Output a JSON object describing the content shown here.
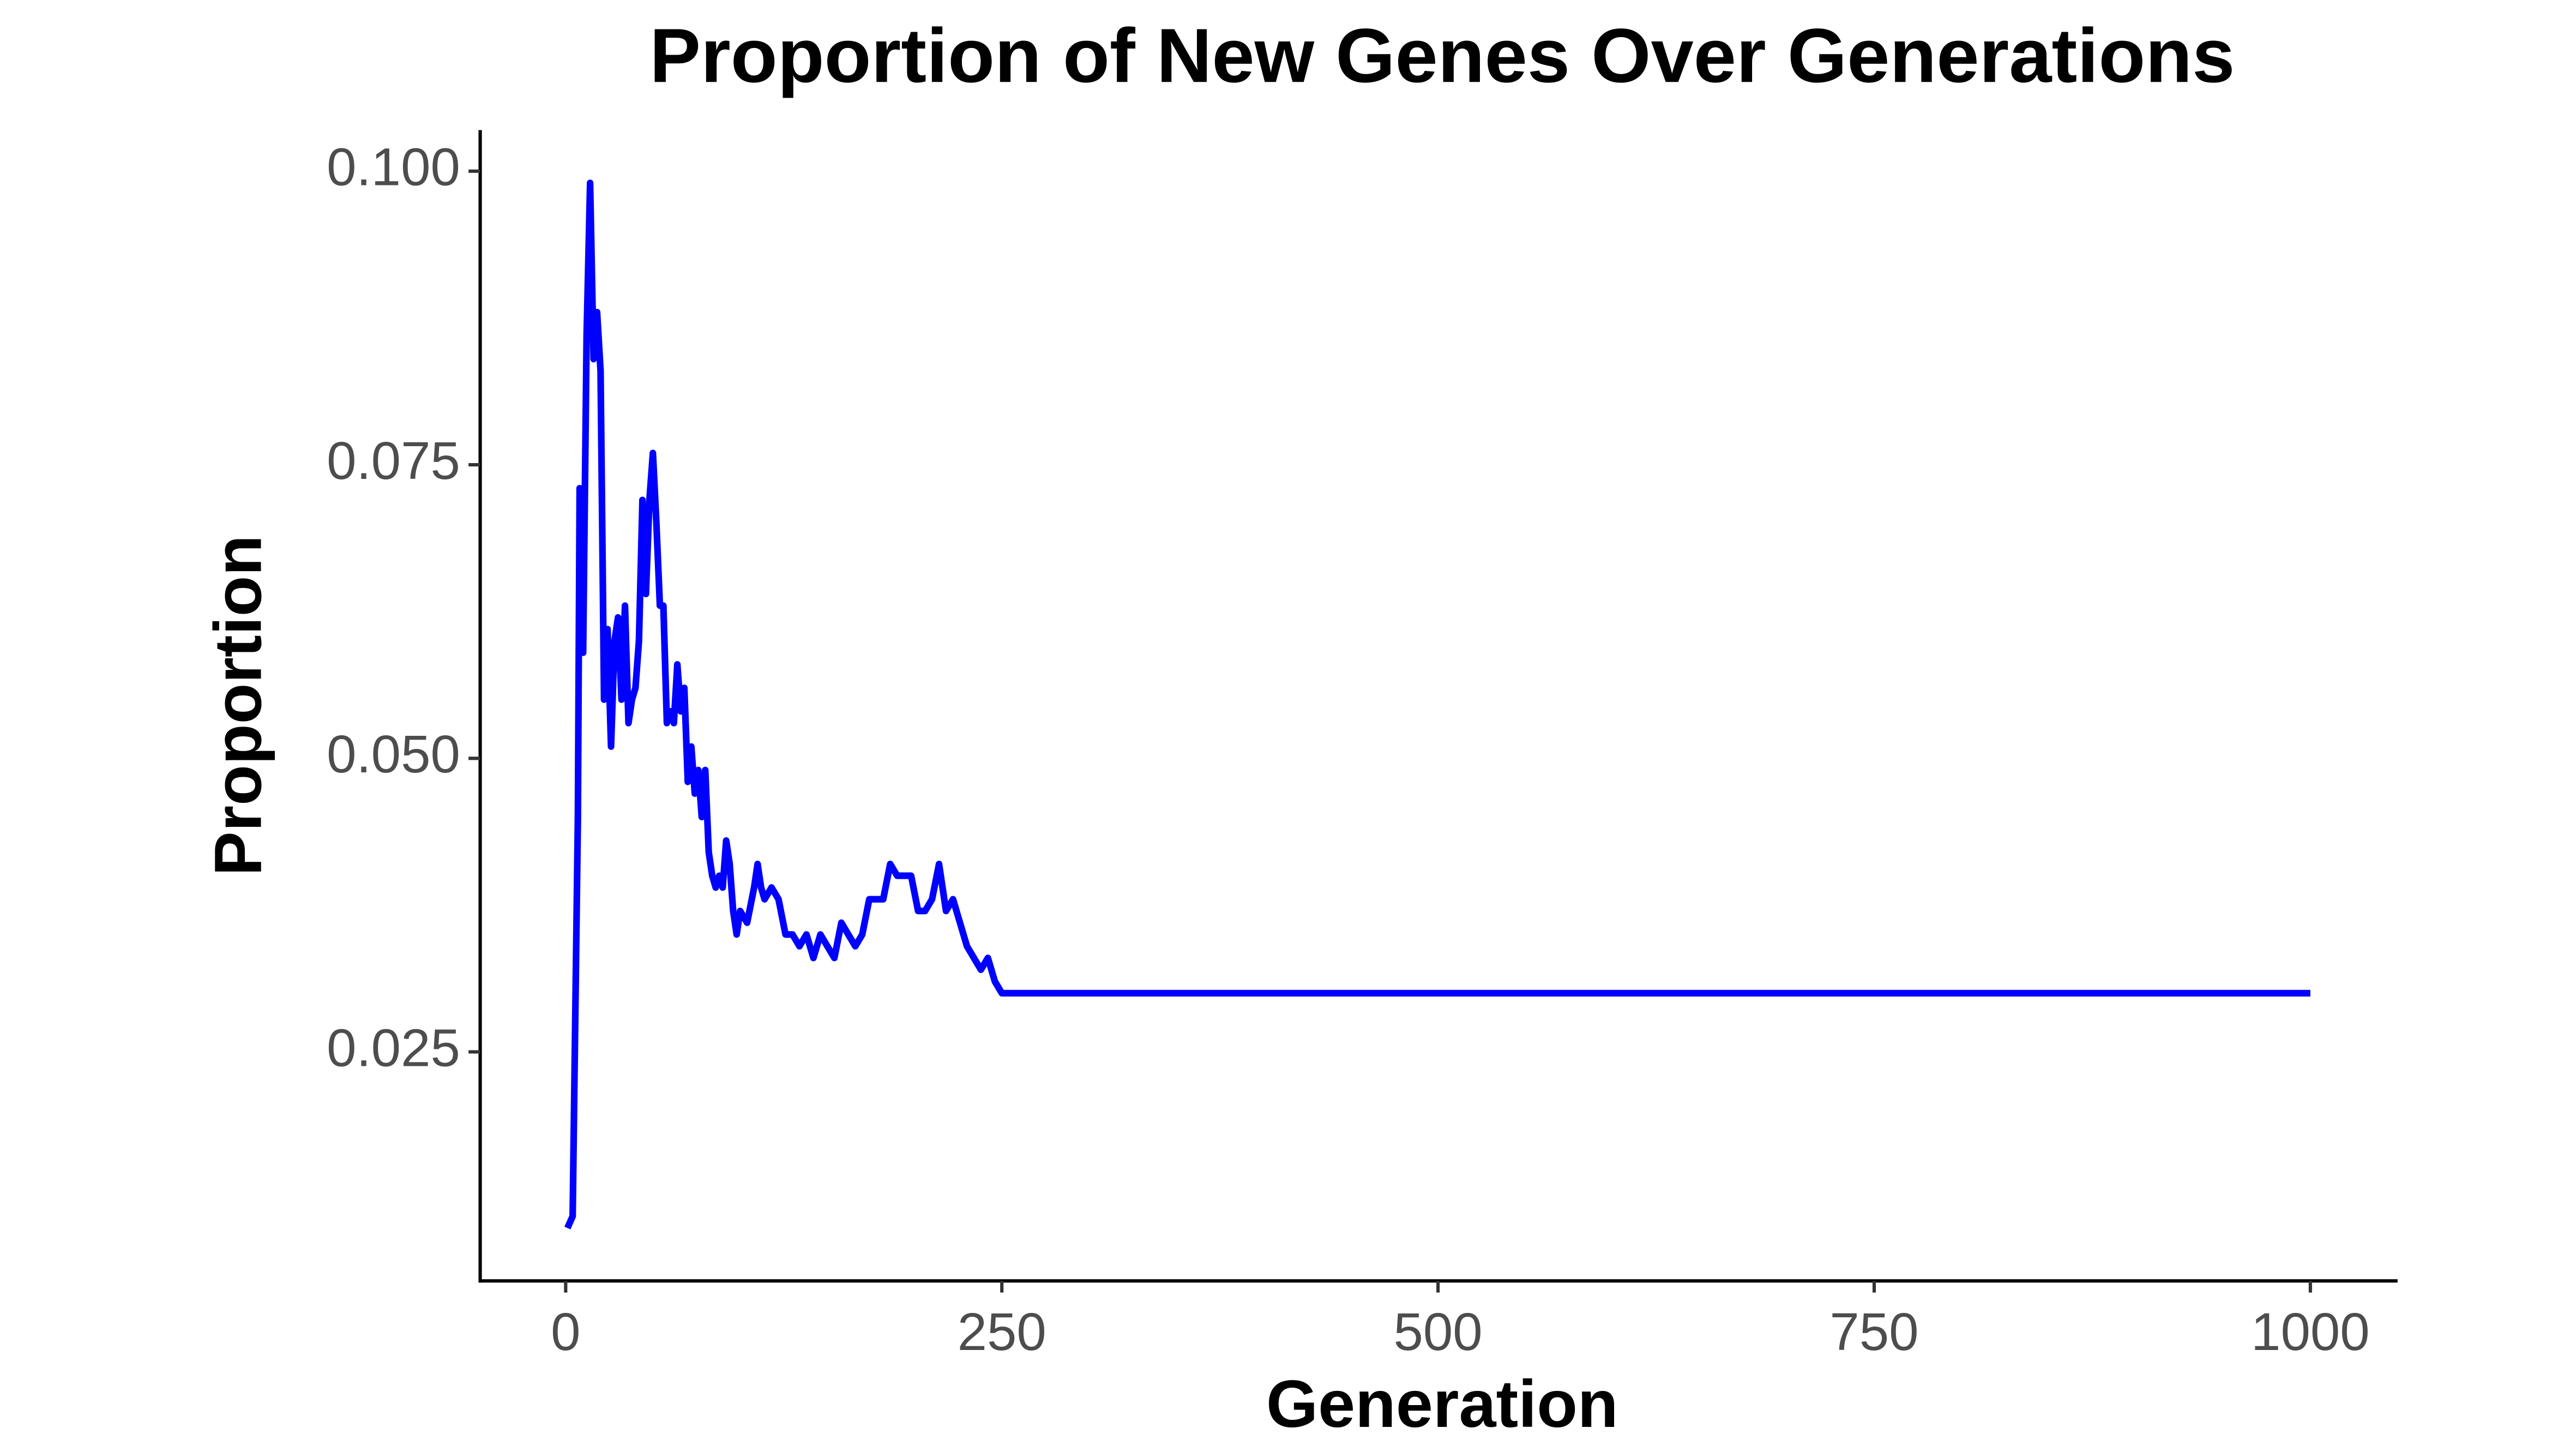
{
  "chart_data": {
    "type": "line",
    "title": "Proportion of New Genes Over Generations",
    "x_label": "Generation",
    "y_label": "Proportion",
    "xlim": [
      -49,
      1050
    ],
    "ylim": [
      0.0055,
      0.1035
    ],
    "xticks": [
      0,
      250,
      500,
      750,
      1000
    ],
    "yticks": [
      {
        "value": 0.025,
        "label": "0.025"
      },
      {
        "value": 0.05,
        "label": "0.050"
      },
      {
        "value": 0.075,
        "label": "0.075"
      },
      {
        "value": 0.1,
        "label": "0.100"
      }
    ],
    "grid": false,
    "series": [
      {
        "name": "Proportion",
        "color": "#0000ff",
        "x": [
          1,
          4,
          7,
          8,
          10,
          12,
          14,
          16,
          18,
          20,
          22,
          24,
          26,
          28,
          30,
          32,
          34,
          36,
          38,
          40,
          42,
          44,
          46,
          48,
          50,
          52,
          54,
          56,
          58,
          60,
          62,
          64,
          66,
          68,
          70,
          72,
          74,
          76,
          78,
          80,
          82,
          84,
          86,
          88,
          90,
          92,
          94,
          96,
          98,
          100,
          104,
          108,
          110,
          112,
          114,
          118,
          122,
          126,
          130,
          134,
          138,
          142,
          146,
          150,
          154,
          158,
          162,
          166,
          170,
          174,
          178,
          182,
          186,
          190,
          194,
          198,
          202,
          206,
          210,
          214,
          218,
          222,
          226,
          230,
          234,
          238,
          242,
          246,
          250,
          1000
        ],
        "values": [
          0.01,
          0.011,
          0.045,
          0.073,
          0.059,
          0.086,
          0.099,
          0.084,
          0.088,
          0.083,
          0.055,
          0.061,
          0.051,
          0.06,
          0.062,
          0.055,
          0.063,
          0.053,
          0.055,
          0.056,
          0.06,
          0.072,
          0.064,
          0.072,
          0.076,
          0.07,
          0.063,
          0.063,
          0.053,
          0.054,
          0.053,
          0.058,
          0.054,
          0.056,
          0.048,
          0.051,
          0.047,
          0.049,
          0.045,
          0.049,
          0.042,
          0.04,
          0.039,
          0.04,
          0.039,
          0.043,
          0.041,
          0.037,
          0.035,
          0.037,
          0.036,
          0.039,
          0.041,
          0.039,
          0.038,
          0.039,
          0.038,
          0.035,
          0.035,
          0.034,
          0.035,
          0.033,
          0.035,
          0.034,
          0.033,
          0.036,
          0.035,
          0.034,
          0.035,
          0.038,
          0.038,
          0.038,
          0.041,
          0.04,
          0.04,
          0.04,
          0.037,
          0.037,
          0.038,
          0.041,
          0.037,
          0.038,
          0.036,
          0.034,
          0.033,
          0.032,
          0.033,
          0.031,
          0.03,
          0.03
        ]
      }
    ]
  }
}
